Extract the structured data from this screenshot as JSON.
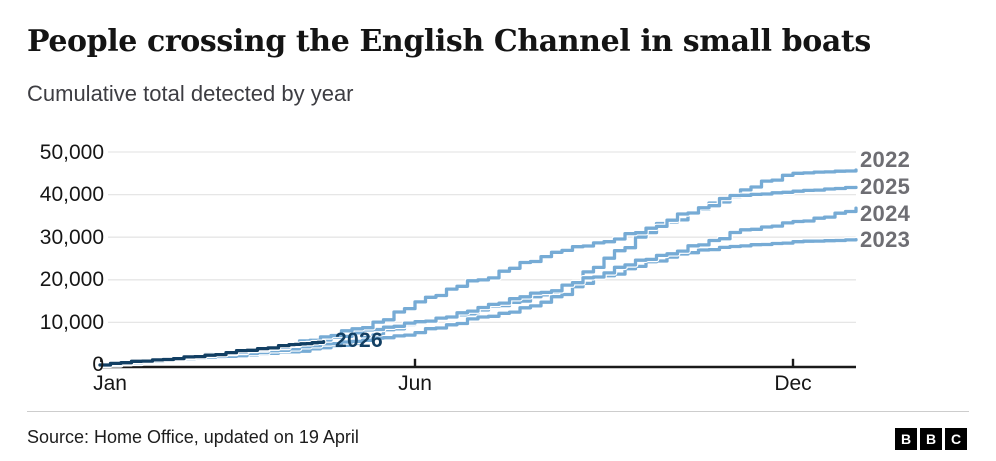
{
  "header": {
    "title": "People crossing the English Channel in small boats",
    "subtitle": "Cumulative total detected by year"
  },
  "footer": {
    "source": "Source: Home Office, updated on 19 April",
    "logo_letters": [
      "B",
      "B",
      "C"
    ]
  },
  "chart_data": {
    "type": "line",
    "title": "People crossing the English Channel in small boats",
    "subtitle": "Cumulative total detected by year",
    "x_unit": "month of year",
    "x_ticks": [
      "Jan",
      "Jun",
      "Dec"
    ],
    "x_tick_months": [
      0,
      5,
      11
    ],
    "ylim": [
      0,
      50000
    ],
    "y_ticks": [
      0,
      10000,
      20000,
      30000,
      40000,
      50000
    ],
    "y_tick_labels": [
      "0",
      "10,000",
      "20,000",
      "30,000",
      "40,000",
      "50,000"
    ],
    "grid": true,
    "legend_position": "right-edge-labels",
    "colors": {
      "line_light": "#76abd5",
      "line_dark": "#123f63",
      "grid": "#e6e6e6",
      "axis": "#1a1a1a",
      "year_label_gray": "#6e6e73",
      "casing": "#ffffff"
    },
    "series": [
      {
        "name": "2022",
        "color": "#76abd5",
        "label_position": "right",
        "label_dy": -10,
        "months": [
          0,
          1,
          2,
          3,
          4,
          5,
          6,
          7,
          8,
          9,
          10,
          11,
          12
        ],
        "values": [
          0,
          1341,
          2006,
          3066,
          5049,
          9902,
          12901,
          16484,
          25065,
          33573,
          39500,
          45000,
          45774
        ]
      },
      {
        "name": "2023",
        "color": "#76abd5",
        "label_position": "right",
        "label_dy": 0,
        "months": [
          0,
          1,
          2,
          3,
          4,
          5,
          6,
          7,
          8,
          9,
          10,
          11,
          12
        ],
        "values": [
          0,
          1180,
          2029,
          3793,
          5546,
          7610,
          11278,
          14732,
          20973,
          25330,
          27816,
          28937,
          29437
        ]
      },
      {
        "name": "2024",
        "color": "#76abd5",
        "label_position": "right",
        "label_dy": 6,
        "months": [
          0,
          1,
          2,
          3,
          4,
          5,
          6,
          7,
          8,
          9,
          10,
          11,
          12
        ],
        "values": [
          0,
          1335,
          2983,
          4644,
          7567,
          10170,
          13489,
          17032,
          21615,
          26107,
          31094,
          33684,
          36816
        ]
      },
      {
        "name": "2025",
        "color": "#76abd5",
        "label_position": "right",
        "label_dy": 0,
        "months": [
          0,
          1,
          2,
          3,
          4,
          5,
          6,
          7,
          8,
          9,
          10,
          11,
          12
        ],
        "values": [
          0,
          1098,
          2716,
          4700,
          8500,
          14811,
          19982,
          25436,
          28947,
          34000,
          39800,
          40800,
          41700
        ]
      },
      {
        "name": "2026",
        "color": "#123f63",
        "label_position": "inline",
        "label_dy": 0,
        "months": [
          0,
          1,
          2,
          3,
          3.55
        ],
        "values": [
          0,
          1300,
          2900,
          4800,
          5500
        ]
      }
    ]
  }
}
